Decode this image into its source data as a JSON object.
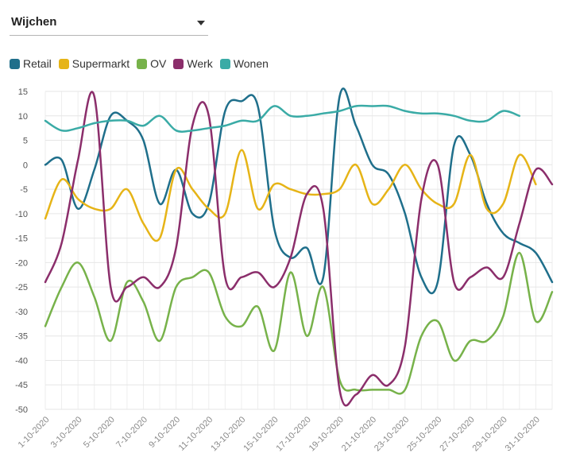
{
  "filter": {
    "selected": "Wijchen"
  },
  "chart_data": {
    "type": "line",
    "ylim": [
      -50,
      15
    ],
    "yticks": [
      15,
      10,
      5,
      0,
      -5,
      -10,
      -15,
      -20,
      -25,
      -30,
      -35,
      -40,
      -45,
      -50
    ],
    "x": [
      "1-10-2020",
      "2-10-2020",
      "3-10-2020",
      "4-10-2020",
      "5-10-2020",
      "6-10-2020",
      "7-10-2020",
      "8-10-2020",
      "9-10-2020",
      "10-10-2020",
      "11-10-2020",
      "12-10-2020",
      "13-10-2020",
      "14-10-2020",
      "15-10-2020",
      "16-10-2020",
      "17-10-2020",
      "18-10-2020",
      "19-10-2020",
      "20-10-2020",
      "21-10-2020",
      "22-10-2020",
      "23-10-2020",
      "24-10-2020",
      "25-10-2020",
      "26-10-2020",
      "27-10-2020",
      "28-10-2020",
      "29-10-2020",
      "30-10-2020",
      "31-10-2020",
      "1-11-2020"
    ],
    "xtick_labels": [
      "1-10-2020",
      "3-10-2020",
      "5-10-2020",
      "7-10-2020",
      "9-10-2020",
      "11-10-2020",
      "13-10-2020",
      "15-10-2020",
      "17-10-2020",
      "19-10-2020",
      "21-10-2020",
      "23-10-2020",
      "25-10-2020",
      "27-10-2020",
      "29-10-2020",
      "31-10-2020"
    ],
    "series": [
      {
        "name": "Retail",
        "color": "#1f6f8b",
        "values": [
          0,
          1,
          -9,
          -1,
          10,
          9,
          5,
          -8,
          -1,
          -10,
          -8,
          11,
          13,
          12,
          -13,
          -19,
          -17,
          -23,
          14,
          8,
          0,
          -2,
          -10,
          -23,
          -24,
          4,
          2,
          -8,
          -14,
          -16,
          -18,
          -24
        ]
      },
      {
        "name": "Supermarkt",
        "color": "#e6b417",
        "values": [
          -11,
          -3,
          -7,
          -9,
          -9,
          -5,
          -12,
          -15,
          -1,
          -5,
          -9,
          -10,
          3,
          -9,
          -4,
          -5,
          -6,
          -6,
          -5,
          0,
          -8,
          -5,
          0,
          -5,
          -8,
          -8,
          2,
          -9,
          -8,
          2,
          -4,
          null
        ]
      },
      {
        "name": "OV",
        "color": "#77b24a",
        "values": [
          -33,
          -25,
          -20,
          -27,
          -36,
          -24,
          -28,
          -36,
          -25,
          -23,
          -22,
          -31,
          -33,
          -29,
          -38,
          -22,
          -35,
          -25,
          -44,
          -46,
          -46,
          -46,
          -46,
          -35,
          -32,
          -40,
          -36,
          -36,
          -31,
          -18,
          -32,
          -26
        ]
      },
      {
        "name": "Werk",
        "color": "#8b2e6b",
        "values": [
          -24,
          -16,
          1,
          14,
          -25,
          -25,
          -23,
          -25,
          -17,
          8,
          10,
          -23,
          -23,
          -22,
          -25,
          -19,
          -6,
          -9,
          -46,
          -47,
          -43,
          -45,
          -37,
          -7,
          0,
          -24,
          -23,
          -21,
          -23,
          -12,
          -1,
          -4
        ]
      },
      {
        "name": "Wonen",
        "color": "#3aaba6",
        "values": [
          9,
          7,
          7.5,
          8.5,
          9,
          9,
          8,
          10,
          7,
          7,
          7.5,
          8,
          9,
          9,
          12,
          10,
          10,
          10.5,
          11,
          12,
          12,
          12,
          11,
          10.5,
          10.5,
          10,
          9,
          9,
          11,
          10,
          null,
          null
        ]
      }
    ]
  }
}
